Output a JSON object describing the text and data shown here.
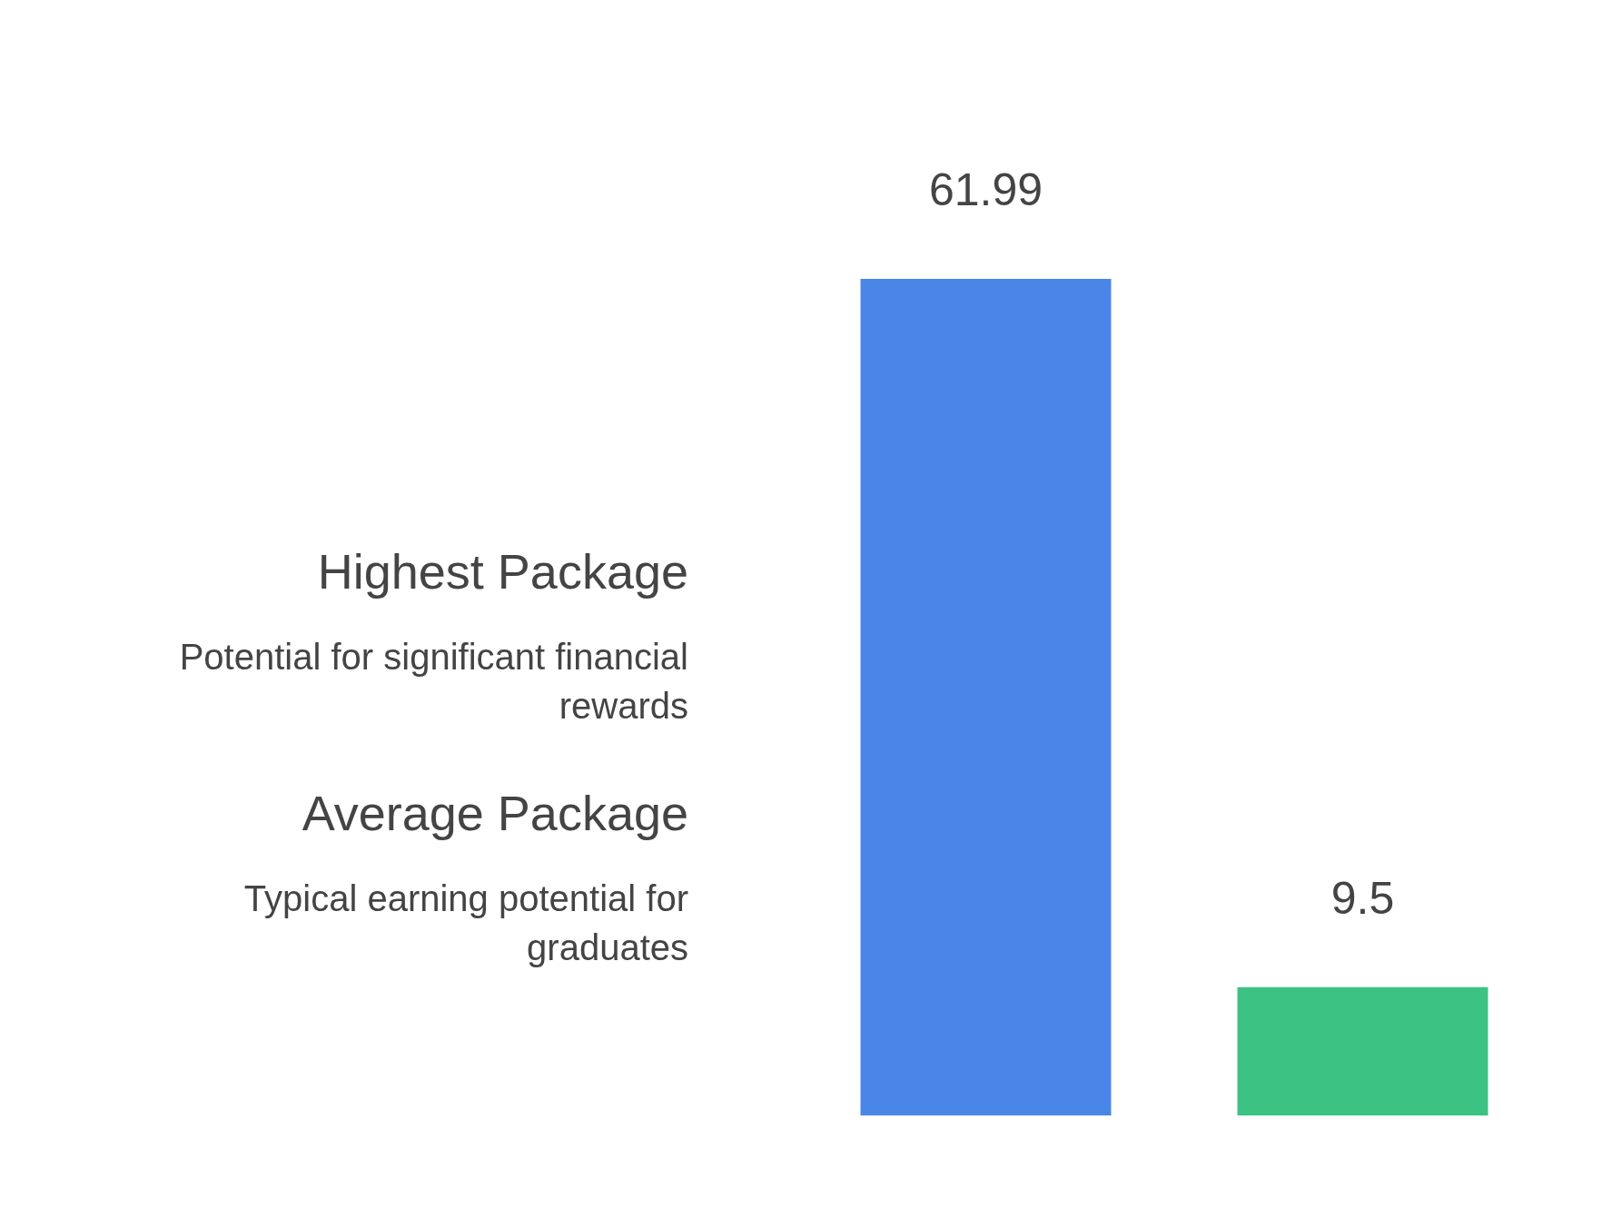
{
  "chart_data": {
    "type": "bar",
    "categories": [
      null,
      null
    ],
    "values": [
      61.99,
      9.5
    ],
    "colors": [
      "#4a86e8",
      "#3cc383"
    ],
    "data_labels": true,
    "tick_labels": false,
    "legend": false,
    "annotations": [
      "Highest Package",
      "Potential for significant financial rewards",
      "Average Package",
      "Typical earning potential for graduates"
    ]
  }
}
